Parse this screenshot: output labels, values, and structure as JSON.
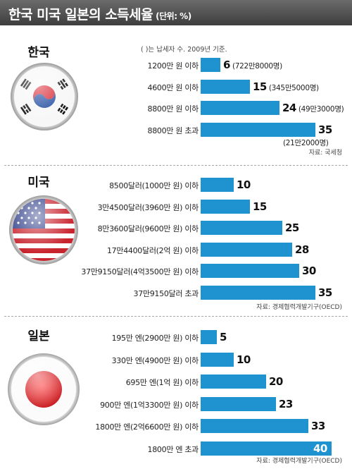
{
  "header": {
    "title": "한국 미국 일본의 소득세율",
    "unit": "(단위: %)"
  },
  "colors": {
    "bar": "#1f93cf",
    "header_bg": "#4a4a4a"
  },
  "sections": [
    {
      "country": "한국",
      "flag": "korea-flag",
      "note": "( )는 납세자 수.   2009년 기준.",
      "source": "자료: 국세청"
    },
    {
      "country": "미국",
      "flag": "usa-flag",
      "source": "자료: 경제협력개발기구(OECD)"
    },
    {
      "country": "일본",
      "flag": "japan-flag",
      "source": "자료: 경제협력개발기구(OECD)"
    }
  ],
  "chart_data": [
    {
      "type": "bar",
      "title": "한국",
      "categories": [
        "1200만 원 이하",
        "4600만 원 이하",
        "8800만 원 이하",
        "8800만 원 초과"
      ],
      "values": [
        6,
        15,
        24,
        35
      ],
      "taxpayers": [
        "(722만8000명)",
        "(345만5000명)",
        "(49만3000명)",
        "(21만2000명)"
      ],
      "xlim": [
        0,
        40
      ]
    },
    {
      "type": "bar",
      "title": "미국",
      "categories": [
        "8500달러(1000만 원) 이하",
        "3만4500달러(3960만 원) 이하",
        "8만3600달러(9600만 원) 이하",
        "17만4400달러(2억 원) 이하",
        "37만9150달러(4억3500만 원) 이하",
        "37만9150달러 초과"
      ],
      "values": [
        10,
        15,
        25,
        28,
        30,
        35
      ],
      "xlim": [
        0,
        40
      ]
    },
    {
      "type": "bar",
      "title": "일본",
      "categories": [
        "195만 엔(2900만 원) 이하",
        "330만 엔(4900만 원) 이하",
        "695만 엔(1억 원) 이하",
        "900만 엔(1억3300만 원) 이하",
        "1800만 엔(2억6600만 원) 이하",
        "1800만 엔 초과"
      ],
      "values": [
        5,
        10,
        20,
        23,
        33,
        40
      ],
      "xlim": [
        0,
        40
      ]
    }
  ]
}
